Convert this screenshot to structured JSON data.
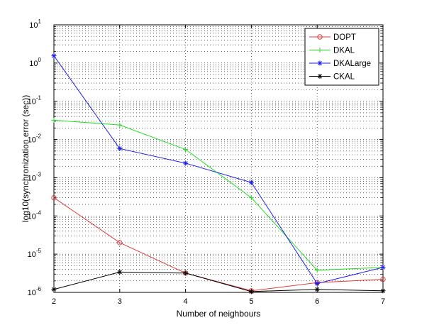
{
  "chart_data": {
    "type": "line",
    "title": "",
    "xlabel": "Number of neighbours",
    "ylabel": "log10(synchronization error (sec))",
    "x": [
      2,
      3,
      4,
      5,
      6,
      7
    ],
    "xlim": [
      2,
      7
    ],
    "xticks": [
      "2",
      "3",
      "4",
      "5",
      "6",
      "7"
    ],
    "y_scale": "log",
    "ylim": [
      1e-06,
      10
    ],
    "yticks": [
      {
        "base": "10",
        "exp": "-6"
      },
      {
        "base": "10",
        "exp": "-5"
      },
      {
        "base": "10",
        "exp": "-4"
      },
      {
        "base": "10",
        "exp": "-3"
      },
      {
        "base": "10",
        "exp": "-2"
      },
      {
        "base": "10",
        "exp": "-1"
      },
      {
        "base": "10",
        "exp": "0"
      },
      {
        "base": "10",
        "exp": "1"
      }
    ],
    "grid": true,
    "legend_position": "top-right",
    "series": [
      {
        "name": "DOPT",
        "color": "#e03c3c",
        "marker": "circle",
        "values": [
          0.0003,
          2e-05,
          3.2e-06,
          1.1e-06,
          1.8e-06,
          2.2e-06
        ]
      },
      {
        "name": "DKAL",
        "color": "#22dd22",
        "marker": "plus",
        "values": [
          0.032,
          0.024,
          0.0055,
          0.0003,
          3.8e-06,
          4.5e-06
        ]
      },
      {
        "name": "DKALarge",
        "color": "#1a1aee",
        "marker": "star",
        "values": [
          1.55,
          0.0058,
          0.0024,
          0.00075,
          1.7e-06,
          4.5e-06
        ]
      },
      {
        "name": "CKAL",
        "color": "#000000",
        "marker": "asterisk",
        "values": [
          1.2e-06,
          3.4e-06,
          3.2e-06,
          1.05e-06,
          1.2e-06,
          1.1e-06
        ]
      }
    ]
  }
}
